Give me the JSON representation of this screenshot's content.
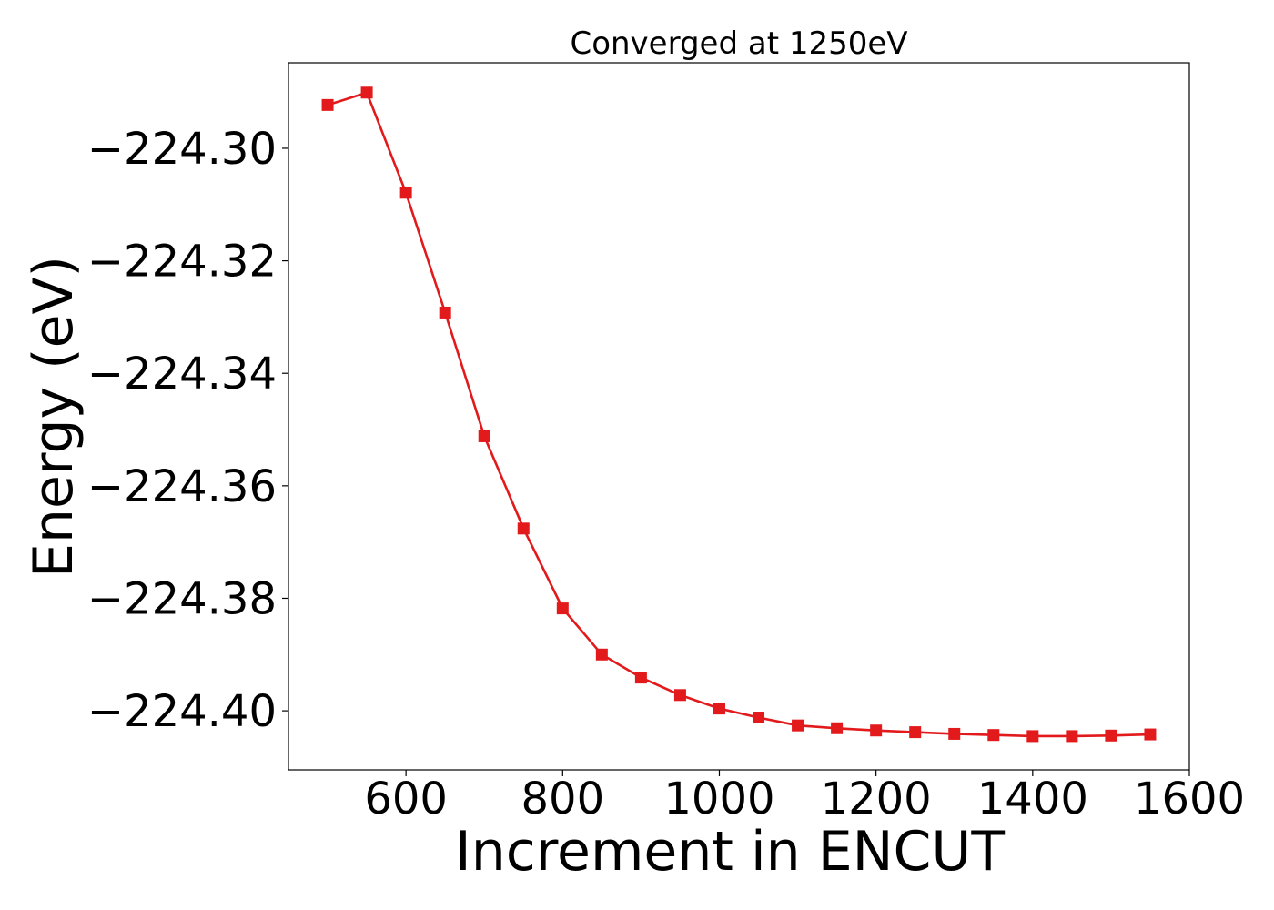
{
  "chart_data": {
    "type": "line",
    "title": "Converged at 1250eV",
    "xlabel": "Increment in ENCUT",
    "ylabel": "Energy (eV)",
    "xlim": [
      450,
      1600
    ],
    "ylim": [
      -224.4105,
      -224.2848
    ],
    "xticks": [
      {
        "value": 600,
        "label": "600"
      },
      {
        "value": 800,
        "label": "800"
      },
      {
        "value": 1000,
        "label": "1000"
      },
      {
        "value": 1200,
        "label": "1200"
      },
      {
        "value": 1400,
        "label": "1400"
      },
      {
        "value": 1600,
        "label": "1600"
      }
    ],
    "yticks": [
      {
        "value": -224.3,
        "label": "−224.30"
      },
      {
        "value": -224.32,
        "label": "−224.32"
      },
      {
        "value": -224.34,
        "label": "−224.34"
      },
      {
        "value": -224.36,
        "label": "−224.36"
      },
      {
        "value": -224.38,
        "label": "−224.38"
      },
      {
        "value": -224.4,
        "label": "−224.40"
      }
    ],
    "series": [
      {
        "color": "#e31a1c",
        "marker": "square",
        "x": [
          500,
          550,
          600,
          650,
          700,
          750,
          800,
          850,
          900,
          950,
          1000,
          1050,
          1100,
          1150,
          1200,
          1250,
          1300,
          1350,
          1400,
          1450,
          1500,
          1550
        ],
        "y": [
          -224.2923,
          -224.2901,
          -224.3079,
          -224.3292,
          -224.3512,
          -224.3676,
          -224.3818,
          -224.39,
          -224.3941,
          -224.3972,
          -224.3996,
          -224.4012,
          -224.4026,
          -224.4031,
          -224.4035,
          -224.4038,
          -224.4041,
          -224.4043,
          -224.4045,
          -224.4045,
          -224.4044,
          -224.4042
        ]
      }
    ],
    "grid": false,
    "legend": false
  }
}
